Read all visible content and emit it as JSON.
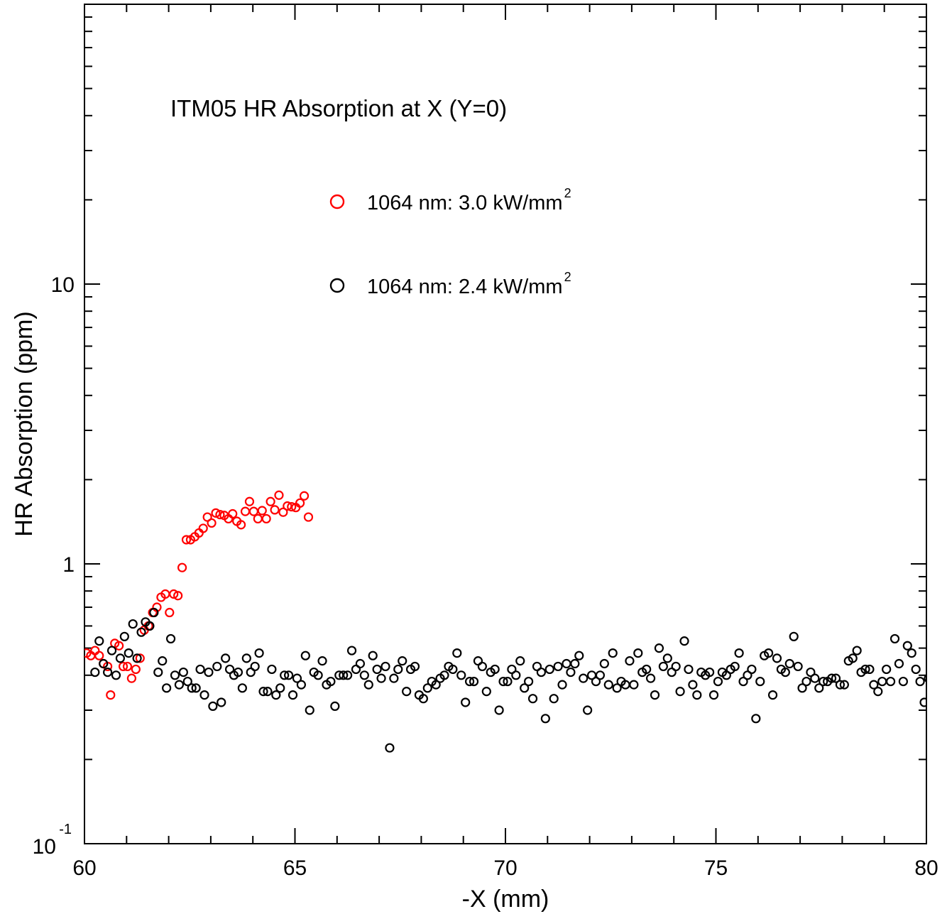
{
  "chart_data": {
    "type": "scatter",
    "title": "ITM05 HR Absorption at X (Y=0)",
    "xlabel": "-X (mm)",
    "ylabel": "HR Absorption (ppm)",
    "xlim": [
      60,
      80
    ],
    "ylim": [
      0.1,
      100
    ],
    "yscale": "log",
    "x_ticks": [
      {
        "value": 60,
        "label": "60"
      },
      {
        "value": 65,
        "label": "65"
      },
      {
        "value": 70,
        "label": "70"
      },
      {
        "value": 75,
        "label": "75"
      },
      {
        "value": 80,
        "label": "80"
      }
    ],
    "y_ticks": [
      {
        "value": 1,
        "label": "1"
      },
      {
        "value": 10,
        "label": "10"
      }
    ],
    "y_tick_exponent": {
      "value": 0.1,
      "base": "10",
      "exponent": "-1"
    },
    "grid": false,
    "legend_position": "top-center",
    "series": [
      {
        "name": "1064 nm: 3.0 kW/mm",
        "name_superscript": "2",
        "color": "#ff0000",
        "points": [
          [
            60.05,
            0.48
          ],
          [
            60.15,
            0.47
          ],
          [
            60.25,
            0.49
          ],
          [
            60.35,
            0.47
          ],
          [
            60.45,
            0.44
          ],
          [
            60.55,
            0.43
          ],
          [
            60.62,
            0.34
          ],
          [
            60.72,
            0.52
          ],
          [
            60.82,
            0.51
          ],
          [
            60.92,
            0.43
          ],
          [
            61.02,
            0.43
          ],
          [
            61.12,
            0.39
          ],
          [
            61.22,
            0.42
          ],
          [
            61.32,
            0.46
          ],
          [
            61.42,
            0.58
          ],
          [
            61.52,
            0.6
          ],
          [
            61.62,
            0.67
          ],
          [
            61.72,
            0.7
          ],
          [
            61.82,
            0.76
          ],
          [
            61.92,
            0.78
          ],
          [
            62.02,
            0.67
          ],
          [
            62.12,
            0.78
          ],
          [
            62.22,
            0.77
          ],
          [
            62.32,
            0.97
          ],
          [
            62.42,
            1.22
          ],
          [
            62.52,
            1.22
          ],
          [
            62.62,
            1.25
          ],
          [
            62.72,
            1.29
          ],
          [
            62.82,
            1.34
          ],
          [
            62.92,
            1.47
          ],
          [
            63.02,
            1.4
          ],
          [
            63.12,
            1.52
          ],
          [
            63.22,
            1.5
          ],
          [
            63.32,
            1.49
          ],
          [
            63.42,
            1.45
          ],
          [
            63.52,
            1.51
          ],
          [
            63.62,
            1.42
          ],
          [
            63.72,
            1.38
          ],
          [
            63.82,
            1.54
          ],
          [
            63.92,
            1.67
          ],
          [
            64.02,
            1.54
          ],
          [
            64.12,
            1.45
          ],
          [
            64.22,
            1.55
          ],
          [
            64.32,
            1.45
          ],
          [
            64.42,
            1.67
          ],
          [
            64.52,
            1.56
          ],
          [
            64.62,
            1.76
          ],
          [
            64.72,
            1.53
          ],
          [
            64.82,
            1.61
          ],
          [
            64.92,
            1.6
          ],
          [
            65.02,
            1.59
          ],
          [
            65.12,
            1.65
          ],
          [
            65.22,
            1.75
          ],
          [
            65.32,
            1.47
          ]
        ]
      },
      {
        "name": "1064 nm: 2.4 kW/mm",
        "name_superscript": "2",
        "color": "#000000",
        "points": [
          [
            60.25,
            0.41
          ],
          [
            60.35,
            0.53
          ],
          [
            60.45,
            0.44
          ],
          [
            60.55,
            0.41
          ],
          [
            60.65,
            0.49
          ],
          [
            60.75,
            0.4
          ],
          [
            60.85,
            0.46
          ],
          [
            60.95,
            0.55
          ],
          [
            61.05,
            0.48
          ],
          [
            61.15,
            0.61
          ],
          [
            61.25,
            0.46
          ],
          [
            61.35,
            0.57
          ],
          [
            61.45,
            0.62
          ],
          [
            61.55,
            0.6
          ],
          [
            61.65,
            0.67
          ],
          [
            61.75,
            0.41
          ],
          [
            61.85,
            0.45
          ],
          [
            61.95,
            0.36
          ],
          [
            62.05,
            0.54
          ],
          [
            62.15,
            0.4
          ],
          [
            62.25,
            0.37
          ],
          [
            62.35,
            0.41
          ],
          [
            62.45,
            0.38
          ],
          [
            62.55,
            0.36
          ],
          [
            62.65,
            0.36
          ],
          [
            62.75,
            0.42
          ],
          [
            62.85,
            0.34
          ],
          [
            62.95,
            0.41
          ],
          [
            63.05,
            0.31
          ],
          [
            63.15,
            0.43
          ],
          [
            63.25,
            0.32
          ],
          [
            63.35,
            0.46
          ],
          [
            63.45,
            0.42
          ],
          [
            63.55,
            0.4
          ],
          [
            63.65,
            0.41
          ],
          [
            63.75,
            0.36
          ],
          [
            63.85,
            0.46
          ],
          [
            63.95,
            0.41
          ],
          [
            64.05,
            0.43
          ],
          [
            64.15,
            0.48
          ],
          [
            64.25,
            0.35
          ],
          [
            64.35,
            0.35
          ],
          [
            64.45,
            0.42
          ],
          [
            64.55,
            0.34
          ],
          [
            64.65,
            0.36
          ],
          [
            64.75,
            0.4
          ],
          [
            64.85,
            0.4
          ],
          [
            64.95,
            0.34
          ],
          [
            65.05,
            0.39
          ],
          [
            65.15,
            0.37
          ],
          [
            65.25,
            0.47
          ],
          [
            65.35,
            0.3
          ],
          [
            65.45,
            0.41
          ],
          [
            65.55,
            0.4
          ],
          [
            65.65,
            0.45
          ],
          [
            65.75,
            0.37
          ],
          [
            65.85,
            0.38
          ],
          [
            65.95,
            0.31
          ],
          [
            66.05,
            0.4
          ],
          [
            66.15,
            0.4
          ],
          [
            66.25,
            0.4
          ],
          [
            66.35,
            0.49
          ],
          [
            66.45,
            0.42
          ],
          [
            66.55,
            0.44
          ],
          [
            66.65,
            0.4
          ],
          [
            66.75,
            0.37
          ],
          [
            66.85,
            0.47
          ],
          [
            66.95,
            0.42
          ],
          [
            67.05,
            0.39
          ],
          [
            67.15,
            0.43
          ],
          [
            67.25,
            0.22
          ],
          [
            67.35,
            0.39
          ],
          [
            67.45,
            0.42
          ],
          [
            67.55,
            0.45
          ],
          [
            67.65,
            0.35
          ],
          [
            67.75,
            0.42
          ],
          [
            67.85,
            0.43
          ],
          [
            67.95,
            0.34
          ],
          [
            68.05,
            0.33
          ],
          [
            68.15,
            0.36
          ],
          [
            68.25,
            0.38
          ],
          [
            68.35,
            0.37
          ],
          [
            68.45,
            0.39
          ],
          [
            68.55,
            0.4
          ],
          [
            68.65,
            0.43
          ],
          [
            68.75,
            0.42
          ],
          [
            68.85,
            0.48
          ],
          [
            68.95,
            0.4
          ],
          [
            69.05,
            0.32
          ],
          [
            69.15,
            0.38
          ],
          [
            69.25,
            0.38
          ],
          [
            69.35,
            0.45
          ],
          [
            69.45,
            0.43
          ],
          [
            69.55,
            0.35
          ],
          [
            69.65,
            0.41
          ],
          [
            69.75,
            0.42
          ],
          [
            69.85,
            0.3
          ],
          [
            69.95,
            0.38
          ],
          [
            70.05,
            0.38
          ],
          [
            70.15,
            0.42
          ],
          [
            70.25,
            0.4
          ],
          [
            70.35,
            0.45
          ],
          [
            70.45,
            0.36
          ],
          [
            70.55,
            0.38
          ],
          [
            70.65,
            0.33
          ],
          [
            70.75,
            0.43
          ],
          [
            70.85,
            0.41
          ],
          [
            70.95,
            0.28
          ],
          [
            71.05,
            0.42
          ],
          [
            71.15,
            0.33
          ],
          [
            71.25,
            0.43
          ],
          [
            71.35,
            0.37
          ],
          [
            71.45,
            0.44
          ],
          [
            71.55,
            0.41
          ],
          [
            71.65,
            0.44
          ],
          [
            71.75,
            0.47
          ],
          [
            71.85,
            0.39
          ],
          [
            71.95,
            0.3
          ],
          [
            72.05,
            0.4
          ],
          [
            72.15,
            0.38
          ],
          [
            72.25,
            0.4
          ],
          [
            72.35,
            0.44
          ],
          [
            72.45,
            0.37
          ],
          [
            72.55,
            0.48
          ],
          [
            72.65,
            0.36
          ],
          [
            72.75,
            0.38
          ],
          [
            72.85,
            0.37
          ],
          [
            72.95,
            0.45
          ],
          [
            73.05,
            0.37
          ],
          [
            73.15,
            0.48
          ],
          [
            73.25,
            0.41
          ],
          [
            73.35,
            0.42
          ],
          [
            73.45,
            0.39
          ],
          [
            73.55,
            0.34
          ],
          [
            73.65,
            0.5
          ],
          [
            73.75,
            0.43
          ],
          [
            73.85,
            0.46
          ],
          [
            73.95,
            0.41
          ],
          [
            74.05,
            0.43
          ],
          [
            74.15,
            0.35
          ],
          [
            74.25,
            0.53
          ],
          [
            74.35,
            0.42
          ],
          [
            74.45,
            0.37
          ],
          [
            74.55,
            0.34
          ],
          [
            74.65,
            0.41
          ],
          [
            74.75,
            0.4
          ],
          [
            74.85,
            0.41
          ],
          [
            74.95,
            0.34
          ],
          [
            75.05,
            0.38
          ],
          [
            75.15,
            0.41
          ],
          [
            75.25,
            0.4
          ],
          [
            75.35,
            0.42
          ],
          [
            75.45,
            0.43
          ],
          [
            75.55,
            0.48
          ],
          [
            75.65,
            0.38
          ],
          [
            75.75,
            0.4
          ],
          [
            75.85,
            0.42
          ],
          [
            75.95,
            0.28
          ],
          [
            76.05,
            0.38
          ],
          [
            76.15,
            0.47
          ],
          [
            76.25,
            0.48
          ],
          [
            76.35,
            0.34
          ],
          [
            76.45,
            0.46
          ],
          [
            76.55,
            0.42
          ],
          [
            76.65,
            0.41
          ],
          [
            76.75,
            0.44
          ],
          [
            76.85,
            0.55
          ],
          [
            76.95,
            0.43
          ],
          [
            77.05,
            0.36
          ],
          [
            77.15,
            0.38
          ],
          [
            77.25,
            0.41
          ],
          [
            77.35,
            0.39
          ],
          [
            77.45,
            0.36
          ],
          [
            77.55,
            0.38
          ],
          [
            77.65,
            0.38
          ],
          [
            77.75,
            0.39
          ],
          [
            77.85,
            0.39
          ],
          [
            77.95,
            0.37
          ],
          [
            78.05,
            0.37
          ],
          [
            78.15,
            0.45
          ],
          [
            78.25,
            0.46
          ],
          [
            78.35,
            0.49
          ],
          [
            78.45,
            0.41
          ],
          [
            78.55,
            0.42
          ],
          [
            78.65,
            0.42
          ],
          [
            78.75,
            0.37
          ],
          [
            78.85,
            0.35
          ],
          [
            78.95,
            0.38
          ],
          [
            79.05,
            0.42
          ],
          [
            79.15,
            0.38
          ],
          [
            79.25,
            0.54
          ],
          [
            79.35,
            0.44
          ],
          [
            79.45,
            0.38
          ],
          [
            79.55,
            0.51
          ],
          [
            79.65,
            0.48
          ],
          [
            79.75,
            0.42
          ],
          [
            79.85,
            0.38
          ],
          [
            79.95,
            0.32
          ],
          [
            80.05,
            0.39
          ],
          [
            80.15,
            0.4
          ]
        ]
      }
    ]
  }
}
